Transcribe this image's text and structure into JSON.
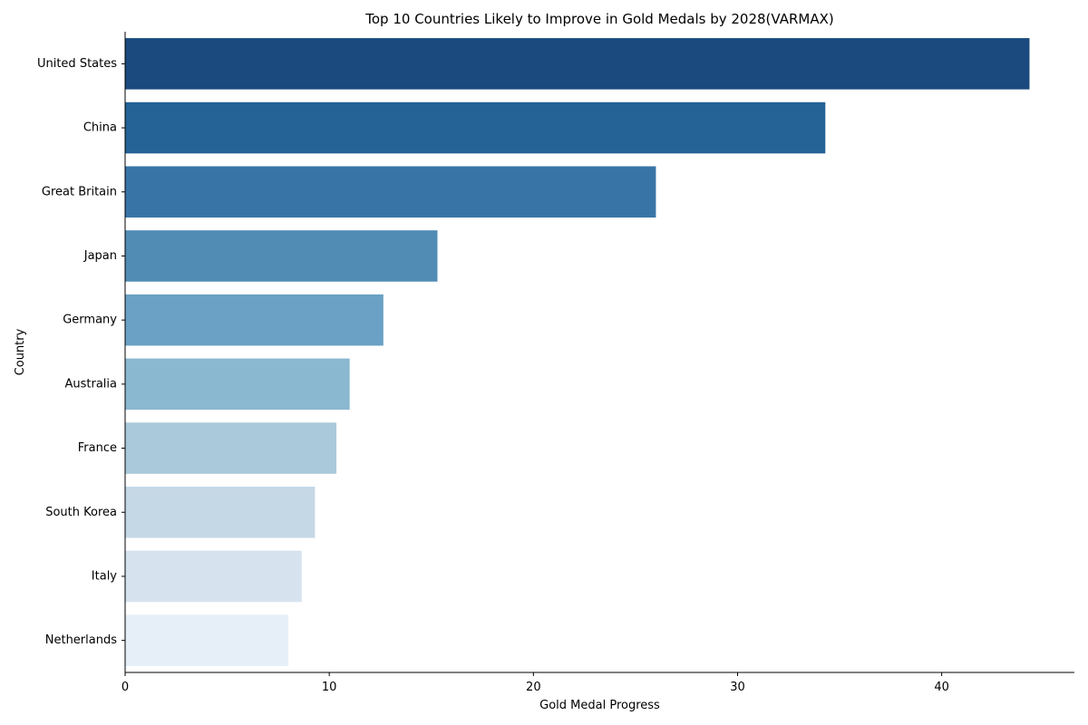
{
  "chart_data": {
    "type": "bar",
    "orientation": "horizontal",
    "title": "Top 10 Countries Likely to Improve in Gold Medals by 2028(VARMAX)",
    "xlabel": "Gold Medal Progress",
    "ylabel": "Country",
    "categories": [
      "United States",
      "China",
      "Great Britain",
      "Japan",
      "Germany",
      "Australia",
      "France",
      "South Korea",
      "Italy",
      "Netherlands"
    ],
    "values": [
      44.3,
      34.3,
      26.0,
      15.3,
      12.65,
      11.0,
      10.35,
      9.3,
      8.65,
      8.0
    ],
    "colors": [
      "#1b4a7e",
      "#256296",
      "#3875a6",
      "#518cb5",
      "#6aa1c4",
      "#8ab8d1",
      "#aac9da",
      "#c5d8e6",
      "#d6e3ef",
      "#e6eff7"
    ],
    "xlim": [
      0,
      46.5
    ],
    "xticks": [
      0,
      10,
      20,
      30,
      40
    ],
    "grid": false,
    "legend": "none"
  }
}
